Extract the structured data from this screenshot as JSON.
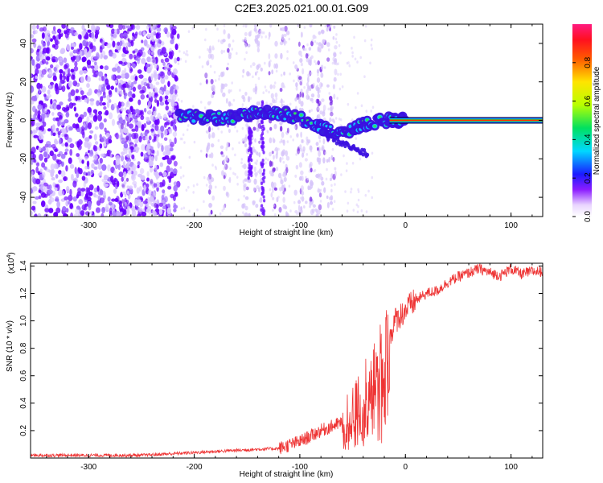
{
  "title": "C2E3.2025.021.00.01.G09",
  "colors": {
    "snr_line": "#ee3333",
    "ridge_core": "#ff3300",
    "ridge_mid": "#22cc44",
    "ridge_edge": "#2233ff",
    "noise": "#7a2be8"
  },
  "chart_data": [
    {
      "type": "heatmap",
      "title": "",
      "xlabel": "Height of straight line (km)",
      "ylabel": "Frequency (Hz)",
      "xlim": [
        -355,
        130
      ],
      "ylim": [
        -50,
        50
      ],
      "xticks": [
        -300,
        -200,
        -100,
        0,
        100
      ],
      "yticks": [
        -40,
        -20,
        0,
        20,
        40
      ],
      "grid": false,
      "colorbar": {
        "label": "Normalized spectral amplitude",
        "range": [
          0,
          1
        ],
        "ticks": [
          0.0,
          0.2,
          0.4,
          0.6,
          0.8
        ]
      },
      "ridge": {
        "x": [
          -215,
          -200,
          -180,
          -160,
          -140,
          -120,
          -100,
          -80,
          -60,
          -40,
          -20,
          0,
          130
        ],
        "freq": [
          3,
          2,
          1,
          2,
          4,
          4,
          1,
          -4,
          -7,
          -2,
          0,
          0,
          0
        ]
      }
    },
    {
      "type": "line",
      "title": "",
      "xlabel": "Height of straight line (km)",
      "ylabel": "SNR (10 * v/v)",
      "yscale_label": "(x10",
      "yscale_exp": "4",
      "xlim": [
        -355,
        130
      ],
      "ylim": [
        0,
        1.42
      ],
      "xticks": [
        -300,
        -200,
        -100,
        0,
        100
      ],
      "yticks": [
        0.2,
        0.4,
        0.6,
        0.8,
        1.0,
        1.2,
        1.4
      ],
      "grid": false,
      "series": [
        {
          "x": [
            -355,
            -300,
            -250,
            -200,
            -150,
            -120,
            -100,
            -80,
            -60,
            -50,
            -40,
            -30,
            -20,
            -10,
            0,
            10,
            20,
            30,
            40,
            50,
            60,
            70,
            80,
            90,
            100,
            110,
            120,
            130
          ],
          "values": [
            0.02,
            0.02,
            0.02,
            0.04,
            0.06,
            0.07,
            0.12,
            0.2,
            0.26,
            0.3,
            0.38,
            0.55,
            0.75,
            1.0,
            1.08,
            1.15,
            1.2,
            1.22,
            1.28,
            1.32,
            1.35,
            1.38,
            1.35,
            1.33,
            1.38,
            1.34,
            1.36,
            1.36
          ]
        }
      ]
    }
  ]
}
